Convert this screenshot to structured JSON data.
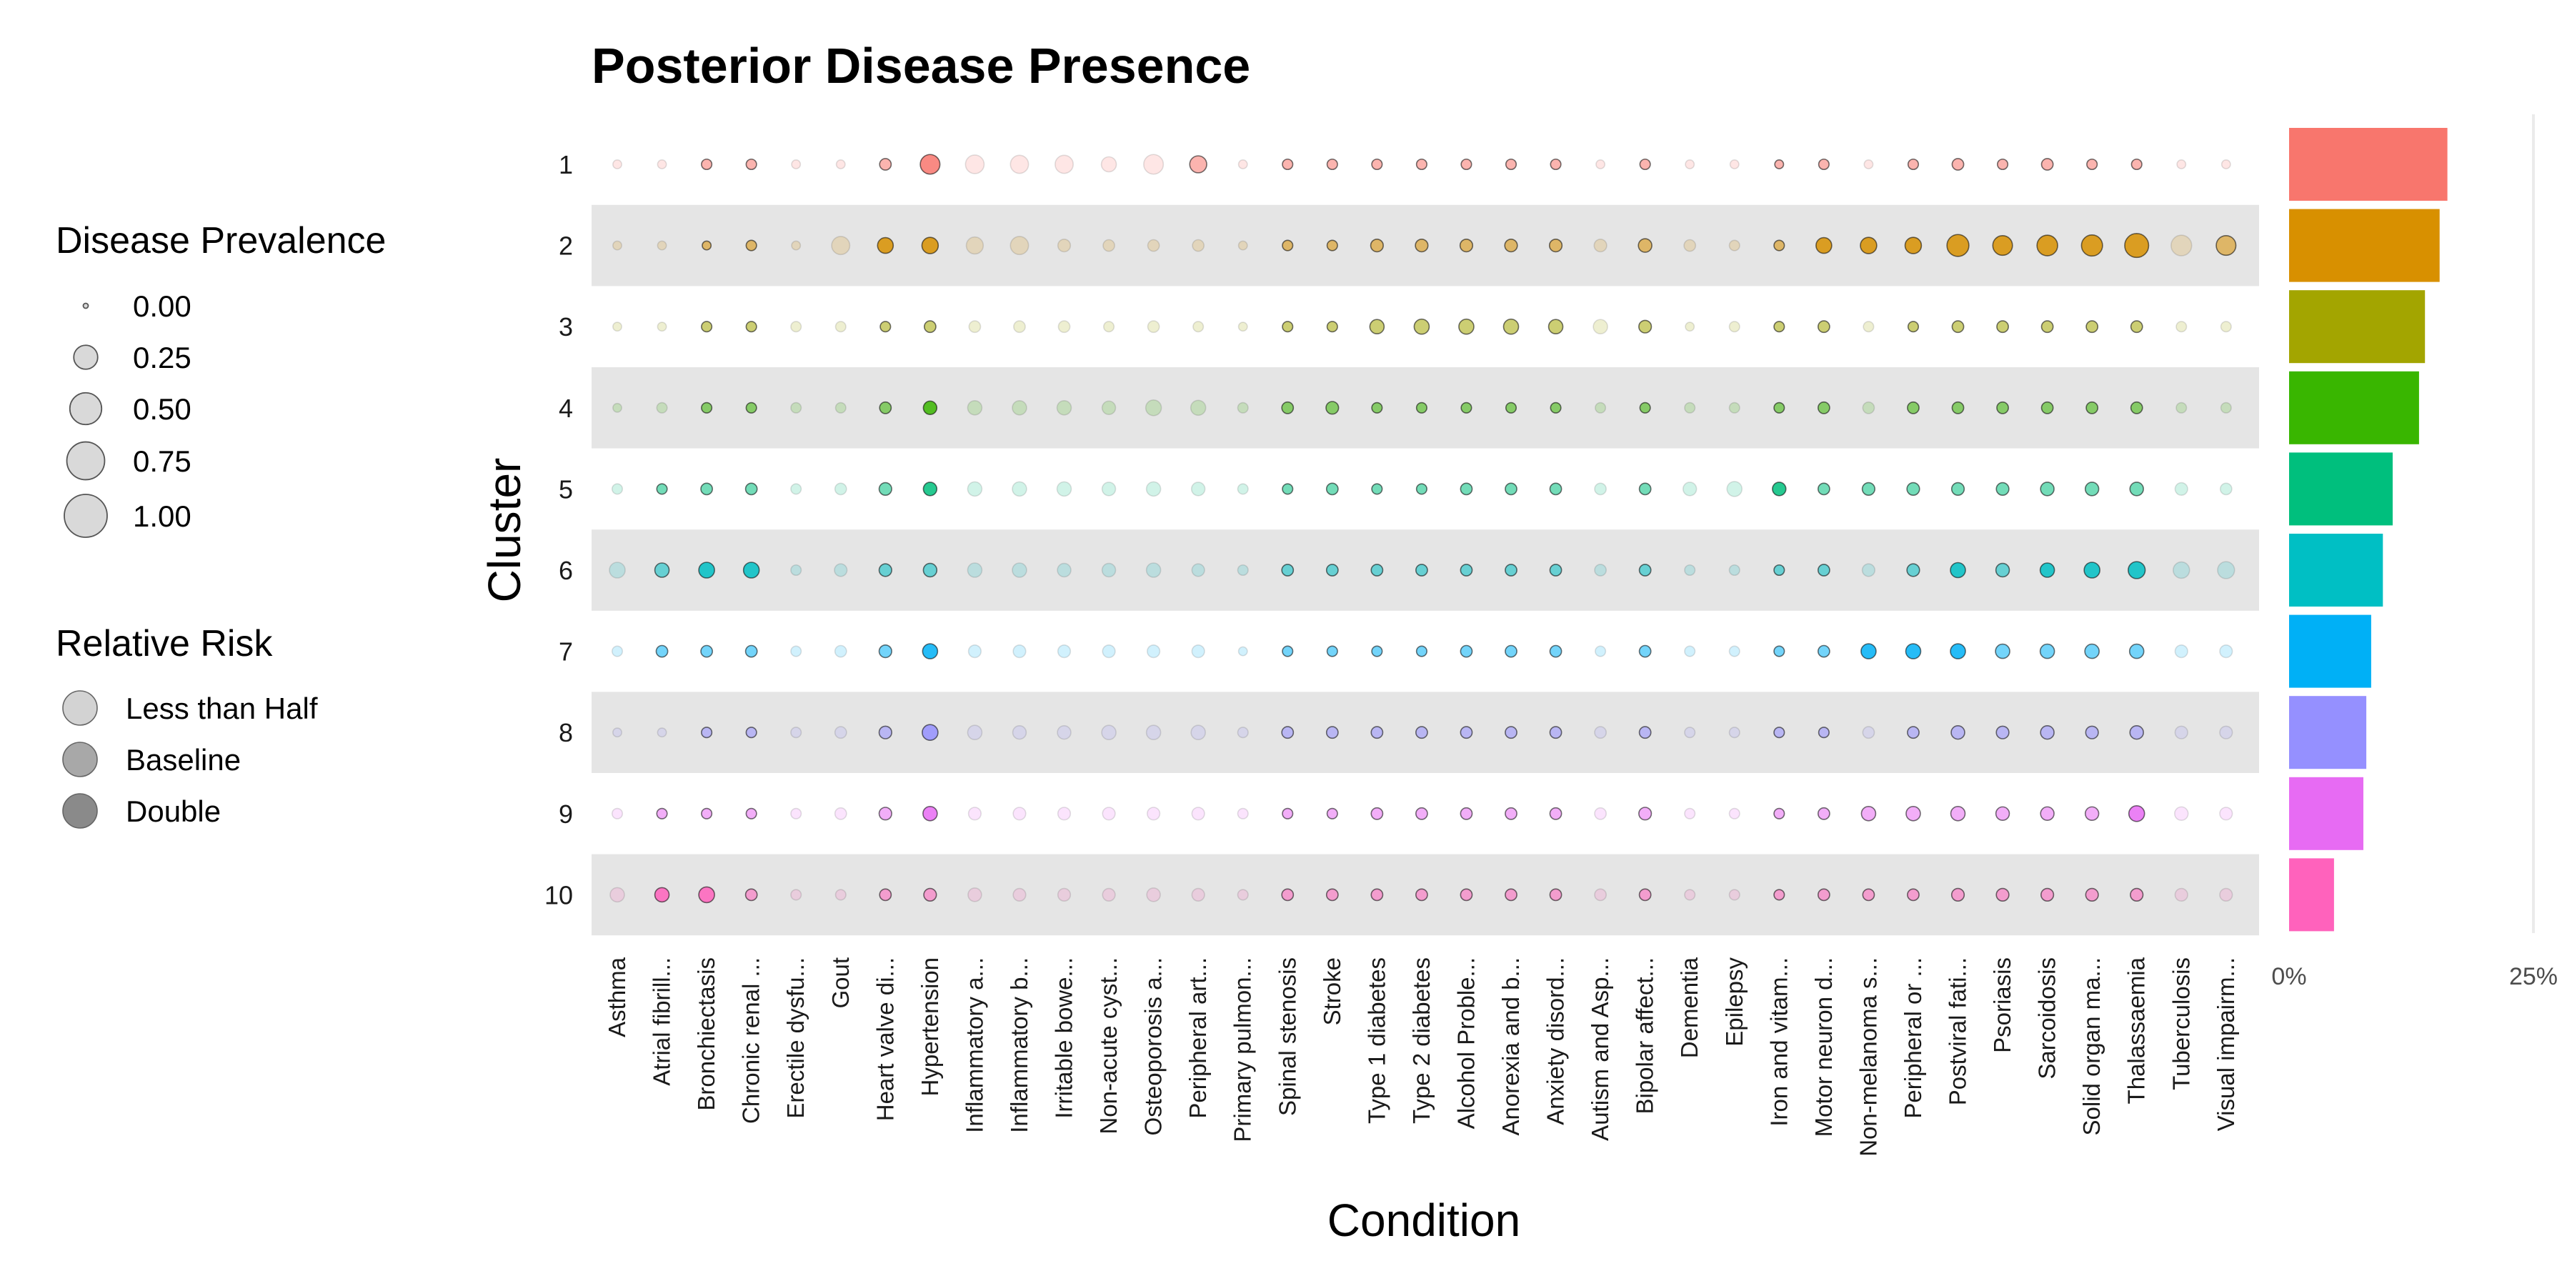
{
  "chart_data": {
    "type": "scatter",
    "title": "Posterior Disease Presence",
    "xlabel": "Condition",
    "ylabel": "Cluster",
    "clusters": [
      "1",
      "2",
      "3",
      "4",
      "5",
      "6",
      "7",
      "8",
      "9",
      "10"
    ],
    "conditions": [
      "Asthma",
      "Atrial fibrill...",
      "Bronchiectasis",
      "Chronic renal ...",
      "Erectile dysfu...",
      "Gout",
      "Heart valve di...",
      "Hypertension",
      "Inflammatory a...",
      "Inflammatory b...",
      "Irritable bowe...",
      "Non-acute cyst...",
      "Osteoporosis a...",
      "Peripheral art...",
      "Primary pulmon...",
      "Spinal stenosis",
      "Stroke",
      "Type 1 diabetes",
      "Type 2 diabetes",
      "Alcohol Proble...",
      "Anorexia and b...",
      "Anxiety disord...",
      "Autism and Asp...",
      "Bipolar affect...",
      "Dementia",
      "Epilepsy",
      "Iron and vitam...",
      "Motor neuron d...",
      "Non-melanoma s...",
      "Peripheral or ...",
      "Postviral fati...",
      "Psoriasis",
      "Sarcoidosis",
      "Solid organ ma...",
      "Thalassaemia",
      "Tuberculosis",
      "Visual impairm..."
    ],
    "cluster_colors": [
      "#F8766D",
      "#D89000",
      "#A3A500",
      "#39B600",
      "#00BF7D",
      "#00BFC4",
      "#00B0F6",
      "#9590FF",
      "#E76BF3",
      "#FF62BC"
    ],
    "prevalence": [
      [
        0.01,
        0.01,
        0.02,
        0.02,
        0.01,
        0.01,
        0.03,
        0.15,
        0.13,
        0.12,
        0.12,
        0.07,
        0.15,
        0.1,
        0.01,
        0.02,
        0.02,
        0.02,
        0.02,
        0.02,
        0.02,
        0.02,
        0.01,
        0.02,
        0.01,
        0.01,
        0.01,
        0.02,
        0.01,
        0.02,
        0.03,
        0.02,
        0.03,
        0.02,
        0.02,
        0.01,
        0.01
      ],
      [
        0.01,
        0.01,
        0.01,
        0.02,
        0.01,
        0.12,
        0.08,
        0.09,
        0.1,
        0.12,
        0.04,
        0.03,
        0.03,
        0.03,
        0.01,
        0.02,
        0.02,
        0.04,
        0.04,
        0.04,
        0.04,
        0.04,
        0.04,
        0.05,
        0.03,
        0.02,
        0.02,
        0.08,
        0.09,
        0.09,
        0.2,
        0.15,
        0.17,
        0.18,
        0.25,
        0.17,
        0.15
      ],
      [
        0.01,
        0.01,
        0.02,
        0.02,
        0.02,
        0.02,
        0.02,
        0.03,
        0.03,
        0.03,
        0.03,
        0.02,
        0.03,
        0.02,
        0.01,
        0.02,
        0.02,
        0.06,
        0.07,
        0.07,
        0.07,
        0.06,
        0.06,
        0.04,
        0.01,
        0.02,
        0.02,
        0.03,
        0.02,
        0.02,
        0.03,
        0.03,
        0.03,
        0.03,
        0.03,
        0.02,
        0.02
      ],
      [
        0.01,
        0.02,
        0.02,
        0.02,
        0.02,
        0.02,
        0.03,
        0.05,
        0.06,
        0.06,
        0.06,
        0.05,
        0.08,
        0.07,
        0.02,
        0.03,
        0.04,
        0.02,
        0.02,
        0.02,
        0.02,
        0.02,
        0.02,
        0.02,
        0.02,
        0.02,
        0.02,
        0.03,
        0.03,
        0.03,
        0.03,
        0.03,
        0.03,
        0.03,
        0.03,
        0.02,
        0.02
      ],
      [
        0.02,
        0.02,
        0.03,
        0.03,
        0.02,
        0.03,
        0.04,
        0.05,
        0.06,
        0.06,
        0.06,
        0.05,
        0.06,
        0.05,
        0.02,
        0.02,
        0.03,
        0.02,
        0.02,
        0.03,
        0.03,
        0.03,
        0.03,
        0.03,
        0.05,
        0.07,
        0.05,
        0.03,
        0.04,
        0.04,
        0.04,
        0.04,
        0.05,
        0.05,
        0.05,
        0.04,
        0.03
      ],
      [
        0.08,
        0.06,
        0.08,
        0.08,
        0.02,
        0.04,
        0.04,
        0.05,
        0.06,
        0.06,
        0.05,
        0.05,
        0.06,
        0.04,
        0.02,
        0.03,
        0.03,
        0.03,
        0.03,
        0.03,
        0.03,
        0.03,
        0.03,
        0.03,
        0.02,
        0.02,
        0.02,
        0.03,
        0.04,
        0.04,
        0.07,
        0.05,
        0.06,
        0.08,
        0.1,
        0.09,
        0.1
      ],
      [
        0.02,
        0.03,
        0.03,
        0.03,
        0.02,
        0.03,
        0.04,
        0.07,
        0.04,
        0.04,
        0.04,
        0.04,
        0.04,
        0.04,
        0.01,
        0.02,
        0.02,
        0.02,
        0.02,
        0.03,
        0.03,
        0.03,
        0.02,
        0.03,
        0.02,
        0.02,
        0.02,
        0.03,
        0.07,
        0.07,
        0.07,
        0.06,
        0.06,
        0.06,
        0.06,
        0.04,
        0.04
      ],
      [
        0.01,
        0.01,
        0.02,
        0.02,
        0.02,
        0.03,
        0.04,
        0.08,
        0.06,
        0.05,
        0.05,
        0.06,
        0.06,
        0.06,
        0.02,
        0.03,
        0.03,
        0.03,
        0.03,
        0.03,
        0.03,
        0.03,
        0.03,
        0.03,
        0.02,
        0.02,
        0.02,
        0.02,
        0.03,
        0.03,
        0.05,
        0.04,
        0.05,
        0.04,
        0.05,
        0.04,
        0.04
      ],
      [
        0.02,
        0.02,
        0.02,
        0.02,
        0.02,
        0.03,
        0.04,
        0.06,
        0.04,
        0.04,
        0.04,
        0.04,
        0.04,
        0.04,
        0.02,
        0.02,
        0.02,
        0.03,
        0.03,
        0.03,
        0.03,
        0.03,
        0.03,
        0.04,
        0.02,
        0.02,
        0.02,
        0.03,
        0.06,
        0.06,
        0.06,
        0.05,
        0.05,
        0.05,
        0.08,
        0.05,
        0.04
      ],
      [
        0.06,
        0.06,
        0.08,
        0.03,
        0.02,
        0.02,
        0.03,
        0.04,
        0.05,
        0.04,
        0.04,
        0.04,
        0.05,
        0.04,
        0.02,
        0.03,
        0.03,
        0.03,
        0.03,
        0.03,
        0.03,
        0.03,
        0.03,
        0.03,
        0.02,
        0.02,
        0.02,
        0.03,
        0.03,
        0.03,
        0.04,
        0.04,
        0.04,
        0.04,
        0.04,
        0.04,
        0.04
      ]
    ],
    "relative_risk": [
      [
        0.5,
        0.5,
        1,
        1,
        0.5,
        0.5,
        1,
        2,
        0.5,
        0.5,
        0.5,
        0.5,
        0.5,
        1,
        0.5,
        1,
        1,
        1,
        1,
        1,
        1,
        1,
        0.5,
        1,
        0.5,
        0.5,
        1,
        1,
        0.5,
        1,
        1,
        1,
        1,
        1,
        1,
        0.5,
        0.5
      ],
      [
        0.5,
        0.5,
        1,
        1,
        0.5,
        0.5,
        2,
        2,
        0.5,
        0.5,
        0.5,
        0.5,
        0.5,
        0.5,
        0.5,
        1,
        1,
        1,
        1,
        1,
        1,
        1,
        0.5,
        1,
        0.5,
        0.5,
        1,
        2,
        2,
        2,
        2,
        2,
        2,
        2,
        2,
        0.5,
        1
      ],
      [
        0.5,
        0.5,
        1,
        1,
        0.5,
        0.5,
        1,
        1,
        0.5,
        0.5,
        0.5,
        0.5,
        0.5,
        0.5,
        0.5,
        1,
        1,
        1,
        1,
        1,
        1,
        1,
        0.5,
        1,
        0.5,
        0.5,
        1,
        1,
        0.5,
        1,
        1,
        1,
        1,
        1,
        1,
        0.5,
        0.5
      ],
      [
        0.5,
        0.5,
        1,
        1,
        0.5,
        0.5,
        1,
        2,
        0.5,
        0.5,
        0.5,
        0.5,
        0.5,
        0.5,
        0.5,
        1,
        1,
        1,
        1,
        1,
        1,
        1,
        0.5,
        1,
        0.5,
        0.5,
        1,
        1,
        0.5,
        1,
        1,
        1,
        1,
        1,
        1,
        0.5,
        0.5
      ],
      [
        0.5,
        1,
        1,
        1,
        0.5,
        0.5,
        1,
        2,
        0.5,
        0.5,
        0.5,
        0.5,
        0.5,
        0.5,
        0.5,
        1,
        1,
        1,
        1,
        1,
        1,
        1,
        0.5,
        1,
        0.5,
        0.5,
        2,
        1,
        1,
        1,
        1,
        1,
        1,
        1,
        1,
        0.5,
        0.5
      ],
      [
        0.5,
        1,
        2,
        2,
        0.5,
        0.5,
        1,
        1,
        0.5,
        0.5,
        0.5,
        0.5,
        0.5,
        0.5,
        0.5,
        1,
        1,
        1,
        1,
        1,
        1,
        1,
        0.5,
        1,
        0.5,
        0.5,
        1,
        1,
        0.5,
        1,
        2,
        1,
        2,
        2,
        2,
        0.5,
        0.5
      ],
      [
        0.5,
        1,
        1,
        1,
        0.5,
        0.5,
        1,
        2,
        0.5,
        0.5,
        0.5,
        0.5,
        0.5,
        0.5,
        0.5,
        1,
        1,
        1,
        1,
        1,
        1,
        1,
        0.5,
        1,
        0.5,
        0.5,
        1,
        1,
        2,
        2,
        2,
        1,
        1,
        1,
        1,
        0.5,
        0.5
      ],
      [
        0.5,
        0.5,
        1,
        1,
        0.5,
        0.5,
        1,
        2,
        0.5,
        0.5,
        0.5,
        0.5,
        0.5,
        0.5,
        0.5,
        1,
        1,
        1,
        1,
        1,
        1,
        1,
        0.5,
        1,
        0.5,
        0.5,
        1,
        1,
        0.5,
        1,
        1,
        1,
        1,
        1,
        1,
        0.5,
        0.5
      ],
      [
        0.5,
        1,
        1,
        1,
        0.5,
        0.5,
        1,
        2,
        0.5,
        0.5,
        0.5,
        0.5,
        0.5,
        0.5,
        0.5,
        1,
        1,
        1,
        1,
        1,
        1,
        1,
        0.5,
        1,
        0.5,
        0.5,
        1,
        1,
        1,
        1,
        1,
        1,
        1,
        1,
        2,
        0.5,
        0.5
      ],
      [
        0.5,
        2,
        2,
        1,
        0.5,
        0.5,
        1,
        1,
        0.5,
        0.5,
        0.5,
        0.5,
        0.5,
        0.5,
        0.5,
        1,
        1,
        1,
        1,
        1,
        1,
        1,
        0.5,
        1,
        0.5,
        0.5,
        1,
        1,
        1,
        1,
        1,
        1,
        1,
        1,
        1,
        0.5,
        0.5
      ]
    ],
    "cluster_share_percent": [
      16.2,
      15.4,
      13.9,
      13.3,
      10.6,
      9.6,
      8.4,
      7.9,
      7.6,
      4.6
    ],
    "bar_axis": {
      "ticks": [
        "0%",
        "25%"
      ],
      "max_percent": 25
    },
    "legend_size": {
      "title": "Disease Prevalence",
      "values": [
        0.0,
        0.25,
        0.5,
        0.75,
        1.0
      ],
      "labels": [
        "0.00",
        "0.25",
        "0.50",
        "0.75",
        "1.00"
      ]
    },
    "legend_alpha": {
      "title": "Relative Risk",
      "levels": [
        0.5,
        1,
        2
      ],
      "labels": [
        "Less than Half",
        "Baseline",
        "Double"
      ]
    },
    "grid": false,
    "band_rows": [
      "2",
      "4",
      "6",
      "8",
      "10"
    ]
  }
}
